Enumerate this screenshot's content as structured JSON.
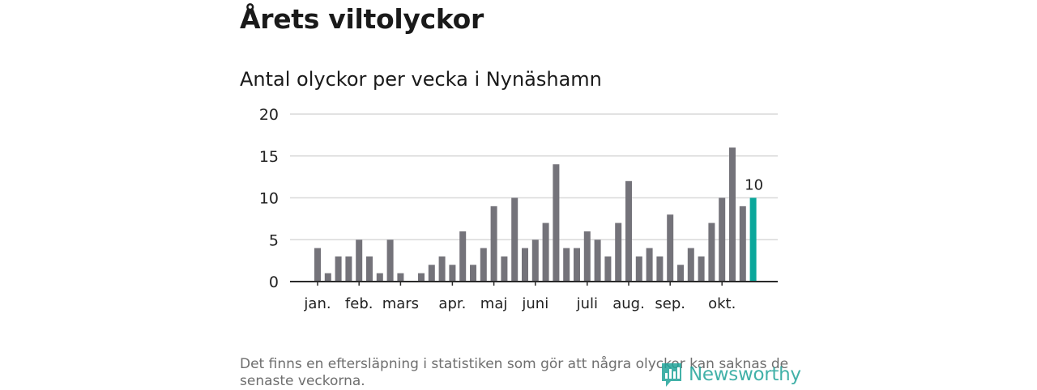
{
  "header": {
    "title": "Årets viltolyckor",
    "subtitle": "Antal olyckor per vecka i Nynäshamn"
  },
  "chart_data": {
    "type": "bar",
    "title": "Antal olyckor per vecka i Nynäshamn",
    "xlabel": "",
    "ylabel": "",
    "ylim": [
      0,
      20
    ],
    "yticks": [
      0,
      5,
      10,
      15,
      20
    ],
    "grid": true,
    "weeks": [
      1,
      2,
      3,
      4,
      5,
      6,
      7,
      8,
      9,
      10,
      11,
      12,
      13,
      14,
      15,
      16,
      17,
      18,
      19,
      20,
      21,
      22,
      23,
      24,
      25,
      26,
      27,
      28,
      29,
      30,
      31,
      32,
      33,
      34,
      35,
      36,
      37,
      38,
      39,
      40,
      41,
      42,
      43
    ],
    "values": [
      4,
      1,
      3,
      3,
      5,
      3,
      1,
      5,
      1,
      0,
      1,
      2,
      3,
      2,
      6,
      2,
      4,
      9,
      3,
      10,
      4,
      5,
      7,
      14,
      4,
      4,
      6,
      5,
      3,
      7,
      12,
      3,
      4,
      3,
      8,
      2,
      4,
      3,
      7,
      10,
      16,
      9,
      10
    ],
    "month_ticks": [
      {
        "label": "jan.",
        "week": 1
      },
      {
        "label": "feb.",
        "week": 5
      },
      {
        "label": "mars",
        "week": 9
      },
      {
        "label": "apr.",
        "week": 14
      },
      {
        "label": "maj",
        "week": 18
      },
      {
        "label": "juni",
        "week": 22
      },
      {
        "label": "juli",
        "week": 27
      },
      {
        "label": "aug.",
        "week": 31
      },
      {
        "label": "sep.",
        "week": 35
      },
      {
        "label": "okt.",
        "week": 40
      }
    ],
    "highlight_index": 42,
    "highlight_label": "10",
    "colors": {
      "bar": "#74737a",
      "highlight": "#0ba79b",
      "grid": "#d9d9d9",
      "axis": "#2a2a2a"
    }
  },
  "footer": {
    "note": "Det finns en eftersläpning i statistiken som gör att några olyckor kan saknas de senaste veckorna.",
    "brand": "Newsworthy",
    "brand_icon": "newsworthy-logo-icon"
  }
}
